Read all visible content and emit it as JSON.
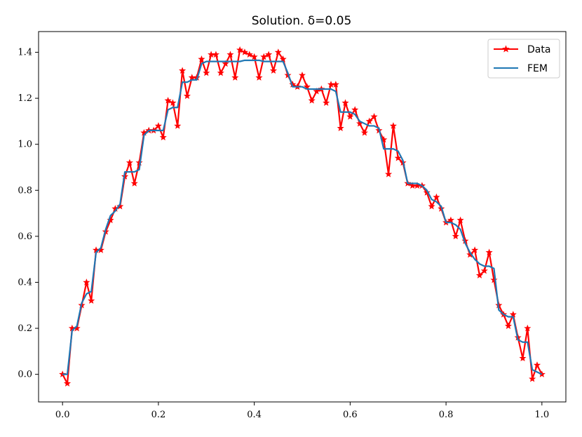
{
  "chart_data": {
    "type": "line",
    "title": "Solution. δ=0.05",
    "xlabel": "",
    "ylabel": "",
    "xlim": [
      -0.05,
      1.05
    ],
    "ylim": [
      -0.12,
      1.49
    ],
    "x_ticks": [
      "0.0",
      "0.2",
      "0.4",
      "0.6",
      "0.8",
      "1.0"
    ],
    "y_ticks": [
      "0.0",
      "0.2",
      "0.4",
      "0.6",
      "0.8",
      "1.0",
      "1.2",
      "1.4"
    ],
    "legend_position": "top-right",
    "series": [
      {
        "name": "Data",
        "color": "#ff0000",
        "marker": "star",
        "x": [
          0.0,
          0.01,
          0.02,
          0.03,
          0.04,
          0.05,
          0.06,
          0.07,
          0.08,
          0.09,
          0.1,
          0.11,
          0.12,
          0.13,
          0.14,
          0.15,
          0.16,
          0.17,
          0.18,
          0.19,
          0.2,
          0.21,
          0.22,
          0.23,
          0.24,
          0.25,
          0.26,
          0.27,
          0.28,
          0.29,
          0.3,
          0.31,
          0.32,
          0.33,
          0.34,
          0.35,
          0.36,
          0.37,
          0.38,
          0.39,
          0.4,
          0.41,
          0.42,
          0.43,
          0.44,
          0.45,
          0.46,
          0.47,
          0.48,
          0.49,
          0.5,
          0.51,
          0.52,
          0.53,
          0.54,
          0.55,
          0.56,
          0.57,
          0.58,
          0.59,
          0.6,
          0.61,
          0.62,
          0.63,
          0.64,
          0.65,
          0.66,
          0.67,
          0.68,
          0.69,
          0.7,
          0.71,
          0.72,
          0.73,
          0.74,
          0.75,
          0.76,
          0.77,
          0.78,
          0.79,
          0.8,
          0.81,
          0.82,
          0.83,
          0.84,
          0.85,
          0.86,
          0.87,
          0.88,
          0.89,
          0.9,
          0.91,
          0.92,
          0.93,
          0.94,
          0.95,
          0.96,
          0.97,
          0.98,
          0.99,
          1.0
        ],
        "values": [
          0.0,
          -0.04,
          0.2,
          0.2,
          0.3,
          0.4,
          0.32,
          0.54,
          0.54,
          0.62,
          0.67,
          0.72,
          0.73,
          0.86,
          0.92,
          0.83,
          0.92,
          1.05,
          1.06,
          1.06,
          1.08,
          1.03,
          1.19,
          1.18,
          1.08,
          1.32,
          1.21,
          1.29,
          1.29,
          1.37,
          1.31,
          1.39,
          1.39,
          1.31,
          1.35,
          1.39,
          1.29,
          1.41,
          1.4,
          1.39,
          1.38,
          1.29,
          1.38,
          1.39,
          1.32,
          1.4,
          1.37,
          1.3,
          1.26,
          1.25,
          1.3,
          1.25,
          1.19,
          1.23,
          1.24,
          1.18,
          1.26,
          1.26,
          1.07,
          1.18,
          1.12,
          1.15,
          1.09,
          1.05,
          1.1,
          1.12,
          1.06,
          1.02,
          0.87,
          1.08,
          0.94,
          0.92,
          0.83,
          0.82,
          0.82,
          0.82,
          0.79,
          0.73,
          0.77,
          0.72,
          0.66,
          0.67,
          0.6,
          0.67,
          0.58,
          0.52,
          0.54,
          0.43,
          0.45,
          0.53,
          0.41,
          0.3,
          0.26,
          0.21,
          0.26,
          0.16,
          0.07,
          0.2,
          -0.02,
          0.04,
          0.0
        ]
      },
      {
        "name": "FEM",
        "color": "#1f77b4",
        "marker": "none",
        "x": [
          0.0,
          0.01,
          0.02,
          0.03,
          0.04,
          0.05,
          0.06,
          0.07,
          0.08,
          0.09,
          0.1,
          0.11,
          0.12,
          0.13,
          0.14,
          0.15,
          0.16,
          0.17,
          0.18,
          0.19,
          0.2,
          0.21,
          0.22,
          0.23,
          0.24,
          0.25,
          0.26,
          0.27,
          0.28,
          0.29,
          0.3,
          0.31,
          0.32,
          0.33,
          0.34,
          0.35,
          0.36,
          0.37,
          0.38,
          0.39,
          0.4,
          0.41,
          0.42,
          0.43,
          0.44,
          0.45,
          0.46,
          0.47,
          0.48,
          0.49,
          0.5,
          0.51,
          0.52,
          0.53,
          0.54,
          0.55,
          0.56,
          0.57,
          0.58,
          0.59,
          0.6,
          0.61,
          0.62,
          0.63,
          0.64,
          0.65,
          0.66,
          0.67,
          0.68,
          0.69,
          0.7,
          0.71,
          0.72,
          0.73,
          0.74,
          0.75,
          0.76,
          0.77,
          0.78,
          0.79,
          0.8,
          0.81,
          0.82,
          0.83,
          0.84,
          0.85,
          0.86,
          0.87,
          0.88,
          0.89,
          0.9,
          0.91,
          0.92,
          0.93,
          0.94,
          0.95,
          0.96,
          0.97,
          0.98,
          0.99,
          1.0
        ],
        "values": [
          0.0,
          0.0,
          0.19,
          0.21,
          0.31,
          0.35,
          0.36,
          0.53,
          0.55,
          0.63,
          0.69,
          0.71,
          0.74,
          0.88,
          0.88,
          0.88,
          0.89,
          1.04,
          1.06,
          1.06,
          1.06,
          1.06,
          1.15,
          1.16,
          1.16,
          1.27,
          1.27,
          1.28,
          1.28,
          1.35,
          1.36,
          1.36,
          1.36,
          1.36,
          1.36,
          1.36,
          1.36,
          1.36,
          1.365,
          1.365,
          1.365,
          1.365,
          1.36,
          1.36,
          1.36,
          1.36,
          1.36,
          1.31,
          1.25,
          1.25,
          1.25,
          1.24,
          1.24,
          1.24,
          1.24,
          1.24,
          1.24,
          1.23,
          1.14,
          1.14,
          1.14,
          1.13,
          1.1,
          1.09,
          1.08,
          1.08,
          1.07,
          0.98,
          0.98,
          0.98,
          0.97,
          0.93,
          0.83,
          0.83,
          0.83,
          0.82,
          0.8,
          0.76,
          0.75,
          0.73,
          0.66,
          0.66,
          0.65,
          0.63,
          0.57,
          0.53,
          0.5,
          0.48,
          0.47,
          0.47,
          0.46,
          0.28,
          0.26,
          0.25,
          0.25,
          0.15,
          0.14,
          0.14,
          0.02,
          0.01,
          0.0
        ]
      }
    ]
  }
}
